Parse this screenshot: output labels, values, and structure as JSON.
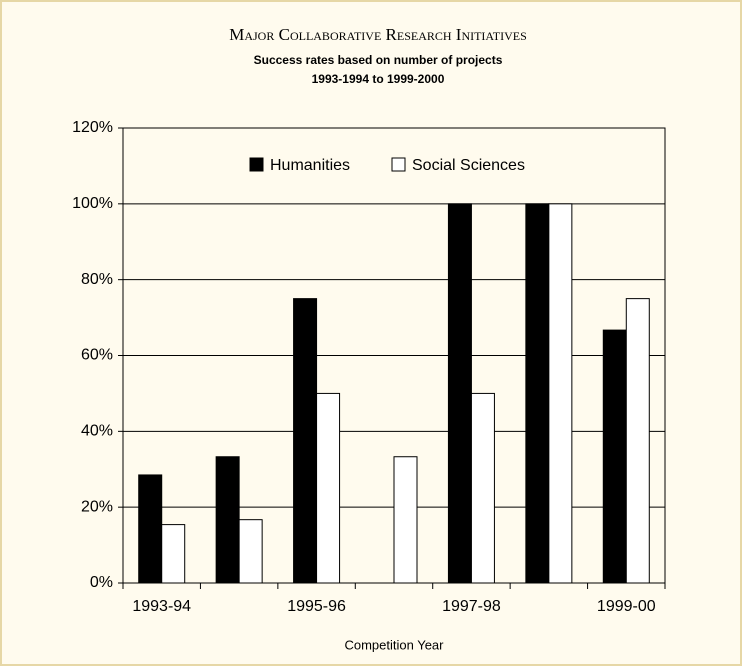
{
  "chart_data": {
    "type": "bar",
    "title": "Major Collaborative Research Initiatives",
    "subtitle": [
      "Success rates based on number of projects",
      "1993-1994 to 1999-2000"
    ],
    "x_label": "Competition Year",
    "categories": [
      "1993-94",
      null,
      "1995-96",
      null,
      "1997-98",
      null,
      "1999-00"
    ],
    "series": [
      {
        "name": "Humanities",
        "color": "#000000",
        "values": [
          28.5,
          33.3,
          75,
          0,
          100,
          100,
          66.7
        ]
      },
      {
        "name": "Social Sciences",
        "color": "#ffffff",
        "values": [
          15.4,
          16.7,
          50,
          33.3,
          50,
          100,
          75
        ]
      }
    ],
    "ylim": [
      0,
      120
    ],
    "yticks": [
      {
        "value": 0,
        "label": "0%"
      },
      {
        "value": 20,
        "label": "20%"
      },
      {
        "value": 40,
        "label": "40%"
      },
      {
        "value": 60,
        "label": "60%"
      },
      {
        "value": 80,
        "label": "80%"
      },
      {
        "value": 100,
        "label": "100%"
      },
      {
        "value": 120,
        "label": "120%"
      }
    ],
    "grid": true,
    "legend": "top"
  }
}
